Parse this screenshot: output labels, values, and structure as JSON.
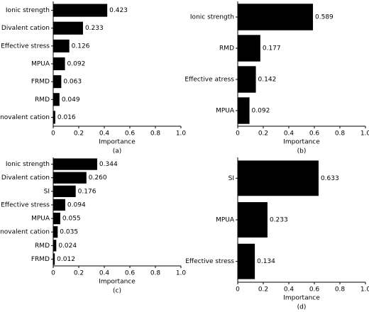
{
  "chart_data": [
    {
      "type": "barh",
      "caption": "(a)",
      "x_label": "Importance",
      "categories": [
        "Ionic strength",
        "Divalent cation",
        "Effective stress",
        "MPUA",
        "FRMD",
        "RMD",
        "Monovalent cation"
      ],
      "values": [
        0.423,
        0.233,
        0.126,
        0.092,
        0.063,
        0.049,
        0.016
      ],
      "color": "#000000",
      "xlim": [
        0,
        1
      ],
      "xticks": [
        0,
        0.2,
        0.4,
        0.6,
        0.8,
        {
          "value": 1,
          "label": "1.0"
        }
      ]
    },
    {
      "type": "barh",
      "caption": "(b)",
      "x_label": "Importance",
      "categories": [
        "Ionic strength",
        "RMD",
        "Effective atress",
        "MPUA"
      ],
      "values": [
        0.589,
        0.177,
        0.142,
        0.092
      ],
      "color": "#000000",
      "xlim": [
        0,
        1
      ],
      "xticks": [
        0,
        0.2,
        0.4,
        0.6,
        0.8,
        {
          "value": 1,
          "label": "1.0"
        }
      ]
    },
    {
      "type": "barh",
      "caption": "(c)",
      "x_label": "Importance",
      "categories": [
        "Ionic strength",
        "Divalent cation",
        "SI",
        "Effective stress",
        "MPUA",
        "Monovalent cation",
        "RMD",
        "FRMD"
      ],
      "values": [
        0.344,
        0.26,
        0.176,
        0.094,
        0.055,
        0.035,
        0.024,
        0.012
      ],
      "value_labels": [
        "0.344",
        "0.260",
        "0.176",
        "0.094",
        "0.055",
        "0.035",
        "0.024",
        "0.012"
      ],
      "color": "#000000",
      "xlim": [
        0,
        1
      ],
      "xticks": [
        0,
        0.2,
        0.4,
        0.6,
        0.8,
        {
          "value": 1,
          "label": "1.0"
        }
      ]
    },
    {
      "type": "barh",
      "caption": "(d)",
      "x_label": "Importance",
      "categories": [
        "SI",
        "MPUA",
        "Effective stress"
      ],
      "values": [
        0.633,
        0.233,
        0.134
      ],
      "color": "#000000",
      "xlim": [
        0,
        1
      ],
      "xticks": [
        0,
        0.2,
        0.4,
        0.6,
        0.8,
        {
          "value": 1,
          "label": "1.0"
        }
      ]
    }
  ]
}
